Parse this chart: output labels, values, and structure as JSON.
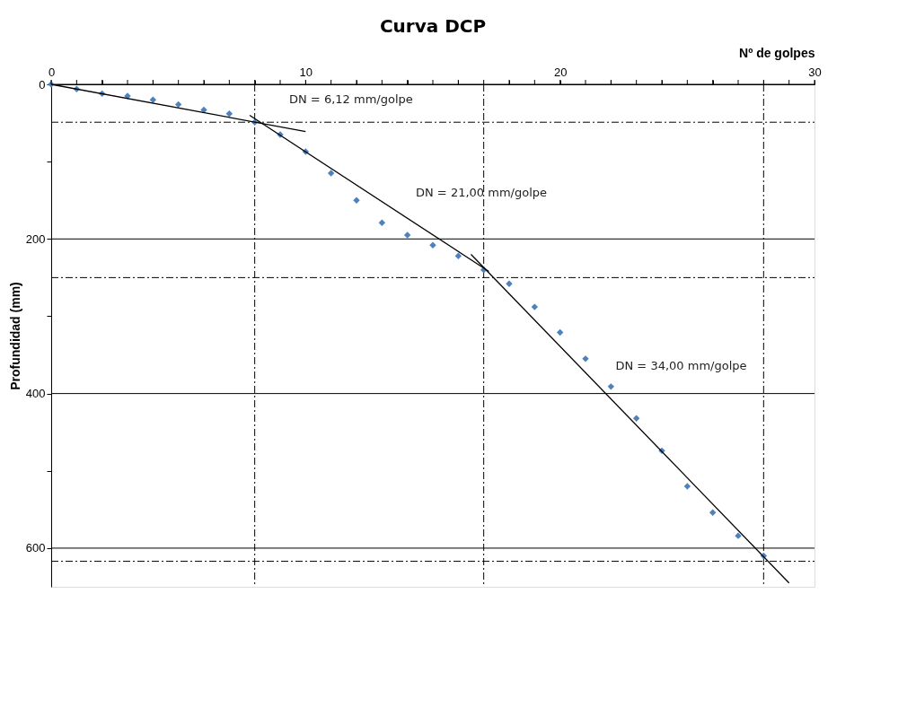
{
  "chart_data": {
    "type": "scatter",
    "title": "Curva DCP",
    "xlabel": "Nº de golpes",
    "ylabel": "Profundidad (mm)",
    "xlim": [
      0,
      30
    ],
    "ylim": [
      650,
      0
    ],
    "xticks": [
      0,
      {
        "value": 1,
        "label": null
      },
      {
        "value": 2,
        "label": null
      },
      {
        "value": 3,
        "label": null
      },
      {
        "value": 4,
        "label": null
      },
      {
        "value": 5,
        "label": null
      },
      {
        "value": 6,
        "label": null
      },
      {
        "value": 7,
        "label": null
      },
      {
        "value": 8,
        "label": null
      },
      {
        "value": 9,
        "label": null
      },
      10,
      {
        "value": 11,
        "label": null
      },
      {
        "value": 12,
        "label": null
      },
      {
        "value": 13,
        "label": null
      },
      {
        "value": 14,
        "label": null
      },
      {
        "value": 15,
        "label": null
      },
      {
        "value": 16,
        "label": null
      },
      {
        "value": 17,
        "label": null
      },
      {
        "value": 18,
        "label": null
      },
      {
        "value": 19,
        "label": null
      },
      20,
      {
        "value": 21,
        "label": null
      },
      {
        "value": 22,
        "label": null
      },
      {
        "value": 23,
        "label": null
      },
      {
        "value": 24,
        "label": null
      },
      {
        "value": 25,
        "label": null
      },
      {
        "value": 26,
        "label": null
      },
      {
        "value": 27,
        "label": null
      },
      {
        "value": 28,
        "label": null
      },
      {
        "value": 29,
        "label": null
      },
      30
    ],
    "yticks": [
      0,
      {
        "value": 100,
        "label": null
      },
      200,
      {
        "value": 300,
        "label": null
      },
      400,
      {
        "value": 500,
        "label": null
      },
      600
    ],
    "grid": "y",
    "series": [
      {
        "color": "#4f81bd",
        "marker": "diamond",
        "x": [
          0,
          1,
          2,
          3,
          4,
          5,
          6,
          7,
          8,
          9,
          10,
          11,
          12,
          13,
          14,
          15,
          16,
          17,
          18,
          19,
          20,
          21,
          22,
          23,
          24,
          25,
          26,
          27,
          28
        ],
        "values": [
          0,
          6,
          12,
          15,
          20,
          26,
          33,
          38,
          49,
          65,
          87,
          115,
          150,
          179,
          195,
          208,
          222,
          240,
          258,
          288,
          321,
          355,
          391,
          432,
          474,
          520,
          554,
          584,
          610
        ]
      },
      {
        "type": "line",
        "color": "#000000",
        "marker": "none",
        "x": [
          0,
          10
        ],
        "values": [
          0,
          61
        ]
      },
      {
        "type": "line",
        "color": "#000000",
        "marker": "none",
        "x": [
          7.8,
          17.2
        ],
        "values": [
          40,
          242
        ]
      },
      {
        "type": "line",
        "color": "#000000",
        "marker": "none",
        "x": [
          16.5,
          29
        ],
        "values": [
          220,
          645
        ]
      }
    ],
    "ref_lines": [
      {
        "axis": "x",
        "value": 8,
        "color": "#000000",
        "line_style": "dashed"
      },
      {
        "axis": "y",
        "value": 49,
        "color": "#000000",
        "line_style": "dashed"
      },
      {
        "axis": "x",
        "value": 17,
        "color": "#000000",
        "line_style": "dashed"
      },
      {
        "axis": "y",
        "value": 250,
        "color": "#000000",
        "line_style": "dashed"
      },
      {
        "axis": "x",
        "value": 28,
        "color": "#000000",
        "line_style": "dashed"
      },
      {
        "axis": "y",
        "value": 617,
        "color": "#000000",
        "line_style": "dashed"
      }
    ],
    "annotations": [
      "DN = 6,12 mm/golpe",
      "DN = 21,00 mm/golpe",
      "DN = 34,00 mm/golpe"
    ]
  }
}
